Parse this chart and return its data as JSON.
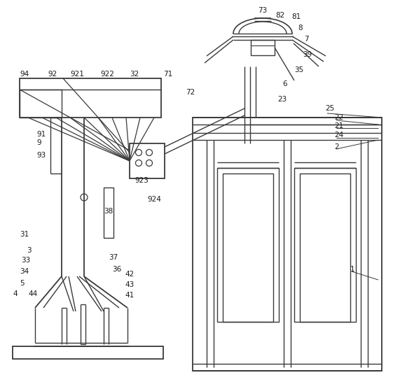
{
  "bg_color": "#ffffff",
  "line_color": "#3a3a3a",
  "label_color": "#1a1a1a",
  "label_fontsize": 7.5,
  "figsize": [
    5.61,
    5.56
  ],
  "dpi": 100
}
